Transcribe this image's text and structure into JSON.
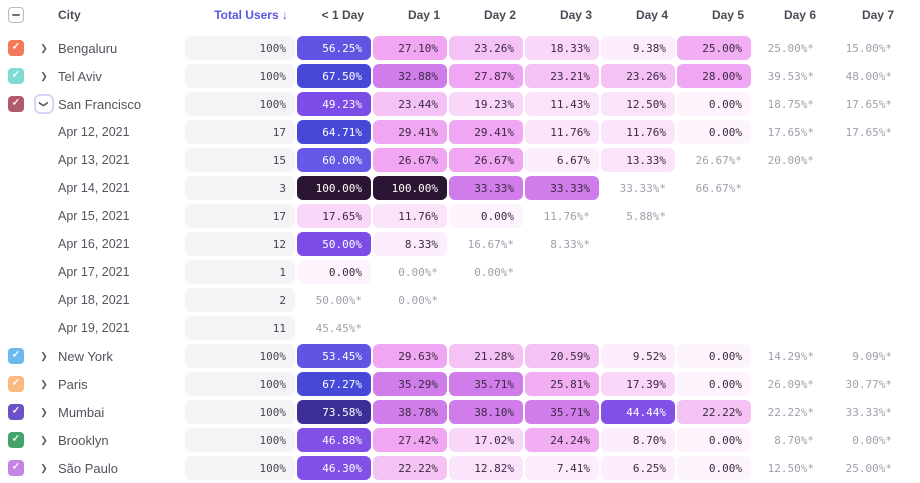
{
  "colors": {
    "accent": "#5857e0",
    "header_text": "#4b4b57",
    "estimate_text": "#a09fad",
    "pill_text_dark": "#3b2a42",
    "pill_text_light": "#ffffff",
    "total_pill_bg": "#f4f4f6",
    "white_text_min": 40,
    "ramp": [
      {
        "min": 95,
        "bg": "#2c1433"
      },
      {
        "min": 70,
        "bg": "#3b2e97"
      },
      {
        "min": 63,
        "bg": "#4649d7"
      },
      {
        "min": 57,
        "bg": "#6658e6"
      },
      {
        "min": 52,
        "bg": "#6154e2"
      },
      {
        "min": 48,
        "bg": "#7b4ce6"
      },
      {
        "min": 40,
        "bg": "#8350e7"
      },
      {
        "min": 30,
        "bg": "#d07cea"
      },
      {
        "min": 26,
        "bg": "#f0a6f2"
      },
      {
        "min": 24,
        "bg": "#f1aef3"
      },
      {
        "min": 20,
        "bg": "#f5c2f6"
      },
      {
        "min": 15,
        "bg": "#f8d7f9"
      },
      {
        "min": 10,
        "bg": "#fae4fb"
      },
      {
        "min": 5,
        "bg": "#fcedfc"
      },
      {
        "min": 0,
        "bg": "#fdf4fd"
      }
    ]
  },
  "header": {
    "city_label": "City",
    "total_users_label": "Total Users",
    "sort_arrow": "↓",
    "day_columns": [
      "< 1 Day",
      "Day 1",
      "Day 2",
      "Day 3",
      "Day 4",
      "Day 5",
      "Day 6",
      "Day 7"
    ],
    "select_all_state": "indeterminate"
  },
  "rows": [
    {
      "type": "city",
      "label": "Bengaluru",
      "checkbox_color": "#f4795b",
      "checked": true,
      "expanded": false,
      "total": "100%",
      "cells": [
        {
          "t": "56.25%",
          "v": 56.25
        },
        {
          "t": "27.10%",
          "v": 27.1
        },
        {
          "t": "23.26%",
          "v": 23.26
        },
        {
          "t": "18.33%",
          "v": 18.33
        },
        {
          "t": "9.38%",
          "v": 9.38
        },
        {
          "t": "25.00%",
          "v": 25.0
        },
        {
          "t": "25.00%*",
          "v": 25.0,
          "est": true
        },
        {
          "t": "15.00%*",
          "v": 15.0,
          "est": true
        }
      ]
    },
    {
      "type": "city",
      "label": "Tel Aviv",
      "checkbox_color": "#7eddd3",
      "checked": true,
      "expanded": false,
      "total": "100%",
      "cells": [
        {
          "t": "67.50%",
          "v": 67.5
        },
        {
          "t": "32.88%",
          "v": 32.88
        },
        {
          "t": "27.87%",
          "v": 27.87
        },
        {
          "t": "23.21%",
          "v": 23.21
        },
        {
          "t": "23.26%",
          "v": 23.26
        },
        {
          "t": "28.00%",
          "v": 28.0
        },
        {
          "t": "39.53%*",
          "v": 39.53,
          "est": true
        },
        {
          "t": "48.00%*",
          "v": 48.0,
          "est": true
        }
      ]
    },
    {
      "type": "city",
      "label": "San Francisco",
      "checkbox_color": "#b0596f",
      "checked": true,
      "expanded": true,
      "total": "100%",
      "cells": [
        {
          "t": "49.23%",
          "v": 49.23
        },
        {
          "t": "23.44%",
          "v": 23.44
        },
        {
          "t": "19.23%",
          "v": 19.23
        },
        {
          "t": "11.43%",
          "v": 11.43
        },
        {
          "t": "12.50%",
          "v": 12.5
        },
        {
          "t": "0.00%",
          "v": 0.0
        },
        {
          "t": "18.75%*",
          "v": 18.75,
          "est": true
        },
        {
          "t": "17.65%*",
          "v": 17.65,
          "est": true
        }
      ]
    },
    {
      "type": "date",
      "label": "Apr 12, 2021",
      "total": "17",
      "cells": [
        {
          "t": "64.71%",
          "v": 64.71
        },
        {
          "t": "29.41%",
          "v": 29.41
        },
        {
          "t": "29.41%",
          "v": 29.41
        },
        {
          "t": "11.76%",
          "v": 11.76
        },
        {
          "t": "11.76%",
          "v": 11.76
        },
        {
          "t": "0.00%",
          "v": 0.0
        },
        {
          "t": "17.65%*",
          "v": 17.65,
          "est": true
        },
        {
          "t": "17.65%*",
          "v": 17.65,
          "est": true
        }
      ]
    },
    {
      "type": "date",
      "label": "Apr 13, 2021",
      "total": "15",
      "cells": [
        {
          "t": "60.00%",
          "v": 60.0
        },
        {
          "t": "26.67%",
          "v": 26.67
        },
        {
          "t": "26.67%",
          "v": 26.67
        },
        {
          "t": "6.67%",
          "v": 6.67
        },
        {
          "t": "13.33%",
          "v": 13.33
        },
        {
          "t": "26.67%*",
          "v": 26.67,
          "est": true
        },
        {
          "t": "20.00%*",
          "v": 20.0,
          "est": true
        },
        null
      ]
    },
    {
      "type": "date",
      "label": "Apr 14, 2021",
      "total": "3",
      "cells": [
        {
          "t": "100.00%",
          "v": 100.0
        },
        {
          "t": "100.00%",
          "v": 100.0
        },
        {
          "t": "33.33%",
          "v": 33.33
        },
        {
          "t": "33.33%",
          "v": 33.33
        },
        {
          "t": "33.33%*",
          "v": 33.33,
          "est": true
        },
        {
          "t": "66.67%*",
          "v": 66.67,
          "est": true
        },
        null,
        null
      ]
    },
    {
      "type": "date",
      "label": "Apr 15, 2021",
      "total": "17",
      "cells": [
        {
          "t": "17.65%",
          "v": 17.65
        },
        {
          "t": "11.76%",
          "v": 11.76
        },
        {
          "t": "0.00%",
          "v": 0.0
        },
        {
          "t": "11.76%*",
          "v": 11.76,
          "est": true
        },
        {
          "t": "5.88%*",
          "v": 5.88,
          "est": true
        },
        null,
        null,
        null
      ]
    },
    {
      "type": "date",
      "label": "Apr 16, 2021",
      "total": "12",
      "cells": [
        {
          "t": "50.00%",
          "v": 50.0
        },
        {
          "t": "8.33%",
          "v": 8.33
        },
        {
          "t": "16.67%*",
          "v": 16.67,
          "est": true
        },
        {
          "t": "8.33%*",
          "v": 8.33,
          "est": true
        },
        null,
        null,
        null,
        null
      ]
    },
    {
      "type": "date",
      "label": "Apr 17, 2021",
      "total": "1",
      "cells": [
        {
          "t": "0.00%",
          "v": 0.0
        },
        {
          "t": "0.00%*",
          "v": 0.0,
          "est": true
        },
        {
          "t": "0.00%*",
          "v": 0.0,
          "est": true
        },
        null,
        null,
        null,
        null,
        null
      ]
    },
    {
      "type": "date",
      "label": "Apr 18, 2021",
      "total": "2",
      "cells": [
        {
          "t": "50.00%*",
          "v": 50.0,
          "est": true
        },
        {
          "t": "0.00%*",
          "v": 0.0,
          "est": true
        },
        null,
        null,
        null,
        null,
        null,
        null
      ]
    },
    {
      "type": "date",
      "label": "Apr 19, 2021",
      "total": "11",
      "cells": [
        {
          "t": "45.45%*",
          "v": 45.45,
          "est": true
        },
        null,
        null,
        null,
        null,
        null,
        null,
        null
      ]
    },
    {
      "type": "city",
      "label": "New York",
      "checkbox_color": "#6cb9ef",
      "checked": true,
      "expanded": false,
      "total": "100%",
      "cells": [
        {
          "t": "53.45%",
          "v": 53.45
        },
        {
          "t": "29.63%",
          "v": 29.63
        },
        {
          "t": "21.28%",
          "v": 21.28
        },
        {
          "t": "20.59%",
          "v": 20.59
        },
        {
          "t": "9.52%",
          "v": 9.52
        },
        {
          "t": "0.00%",
          "v": 0.0
        },
        {
          "t": "14.29%*",
          "v": 14.29,
          "est": true
        },
        {
          "t": "9.09%*",
          "v": 9.09,
          "est": true
        }
      ]
    },
    {
      "type": "city",
      "label": "Paris",
      "checkbox_color": "#f9b97f",
      "checked": true,
      "expanded": false,
      "total": "100%",
      "cells": [
        {
          "t": "67.27%",
          "v": 67.27
        },
        {
          "t": "35.29%",
          "v": 35.29
        },
        {
          "t": "35.71%",
          "v": 35.71
        },
        {
          "t": "25.81%",
          "v": 25.81
        },
        {
          "t": "17.39%",
          "v": 17.39
        },
        {
          "t": "0.00%",
          "v": 0.0
        },
        {
          "t": "26.09%*",
          "v": 26.09,
          "est": true
        },
        {
          "t": "30.77%*",
          "v": 30.77,
          "est": true
        }
      ]
    },
    {
      "type": "city",
      "label": "Mumbai",
      "checkbox_color": "#6d51c9",
      "checked": true,
      "expanded": false,
      "total": "100%",
      "cells": [
        {
          "t": "73.58%",
          "v": 73.58
        },
        {
          "t": "38.78%",
          "v": 38.78
        },
        {
          "t": "38.10%",
          "v": 38.1
        },
        {
          "t": "35.71%",
          "v": 35.71
        },
        {
          "t": "44.44%",
          "v": 44.44
        },
        {
          "t": "22.22%",
          "v": 22.22
        },
        {
          "t": "22.22%*",
          "v": 22.22,
          "est": true
        },
        {
          "t": "33.33%*",
          "v": 33.33,
          "est": true
        }
      ]
    },
    {
      "type": "city",
      "label": "Brooklyn",
      "checkbox_color": "#43a368",
      "checked": true,
      "expanded": false,
      "total": "100%",
      "cells": [
        {
          "t": "46.88%",
          "v": 46.88
        },
        {
          "t": "27.42%",
          "v": 27.42
        },
        {
          "t": "17.02%",
          "v": 17.02
        },
        {
          "t": "24.24%",
          "v": 24.24
        },
        {
          "t": "8.70%",
          "v": 8.7
        },
        {
          "t": "0.00%",
          "v": 0.0
        },
        {
          "t": "8.70%*",
          "v": 8.7,
          "est": true
        },
        {
          "t": "0.00%*",
          "v": 0.0,
          "est": true
        }
      ]
    },
    {
      "type": "city",
      "label": "São Paulo",
      "checkbox_color": "#c583e5",
      "checked": true,
      "expanded": false,
      "total": "100%",
      "cells": [
        {
          "t": "46.30%",
          "v": 46.3
        },
        {
          "t": "22.22%",
          "v": 22.22
        },
        {
          "t": "12.82%",
          "v": 12.82
        },
        {
          "t": "7.41%",
          "v": 7.41
        },
        {
          "t": "6.25%",
          "v": 6.25
        },
        {
          "t": "0.00%",
          "v": 0.0
        },
        {
          "t": "12.50%*",
          "v": 12.5,
          "est": true
        },
        {
          "t": "25.00%*",
          "v": 25.0,
          "est": true
        }
      ]
    }
  ]
}
